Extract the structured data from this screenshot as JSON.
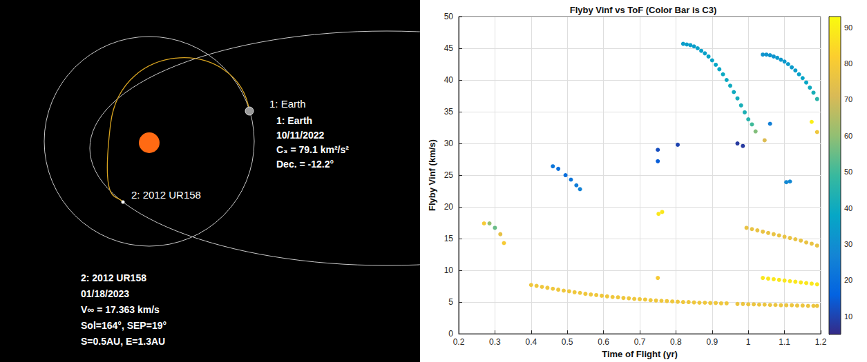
{
  "chart_data": {
    "type": "scatter",
    "title": "Flyby Vinf vs ToF (Color Bar is C3)",
    "x_label": "Time of Flight (yr)",
    "y_label": "Flyby Vinf (km/s)",
    "x": [
      0.27,
      0.285,
      0.3,
      0.315,
      0.325,
      0.4,
      0.415,
      0.43,
      0.445,
      0.46,
      0.475,
      0.49,
      0.505,
      0.52,
      0.535,
      0.55,
      0.565,
      0.58,
      0.595,
      0.61,
      0.625,
      0.64,
      0.655,
      0.67,
      0.685,
      0.7,
      0.715,
      0.73,
      0.745,
      0.76,
      0.775,
      0.79,
      0.805,
      0.82,
      0.835,
      0.85,
      0.865,
      0.88,
      0.895,
      0.91,
      0.925,
      0.94,
      0.97,
      0.985,
      1.0,
      1.015,
      1.03,
      1.045,
      1.06,
      1.075,
      1.09,
      1.105,
      1.12,
      1.135,
      1.15,
      1.165,
      1.18,
      1.19,
      1.04,
      1.055,
      1.07,
      1.085,
      1.1,
      1.115,
      1.13,
      1.145,
      1.16,
      1.175,
      1.19,
      0.995,
      1.01,
      1.025,
      1.04,
      1.055,
      1.07,
      1.085,
      1.1,
      1.115,
      1.13,
      1.145,
      1.16,
      1.175,
      1.19,
      0.75,
      0.752,
      0.762,
      0.46,
      0.475,
      0.495,
      0.51,
      0.525,
      0.535,
      0.75,
      0.75,
      0.805,
      0.97,
      0.985,
      1.06,
      1.105,
      1.115,
      0.82,
      0.83,
      0.84,
      0.85,
      0.86,
      0.87,
      0.88,
      0.89,
      0.9,
      0.91,
      0.92,
      0.93,
      0.94,
      0.95,
      0.96,
      0.97,
      0.98,
      0.99,
      1.0,
      1.01,
      1.02,
      1.045,
      1.04,
      1.05,
      1.06,
      1.07,
      1.08,
      1.09,
      1.1,
      1.11,
      1.12,
      1.13,
      1.14,
      1.15,
      1.16,
      1.17,
      1.18,
      1.19,
      1.175,
      1.19
    ],
    "values": [
      17.4,
      17.4,
      16.7,
      15.7,
      14.3,
      7.7,
      7.55,
      7.4,
      7.25,
      7.1,
      6.95,
      6.8,
      6.7,
      6.55,
      6.45,
      6.3,
      6.2,
      6.1,
      6.0,
      5.9,
      5.8,
      5.75,
      5.65,
      5.6,
      5.5,
      5.45,
      5.4,
      5.3,
      5.25,
      5.2,
      5.15,
      5.1,
      5.05,
      5.0,
      5.0,
      4.95,
      4.9,
      4.9,
      4.85,
      4.85,
      4.8,
      4.8,
      4.7,
      4.7,
      4.65,
      4.65,
      4.6,
      4.6,
      4.55,
      4.55,
      4.5,
      4.5,
      4.5,
      4.45,
      4.45,
      4.4,
      4.4,
      4.4,
      8.8,
      8.7,
      8.6,
      8.5,
      8.4,
      8.3,
      8.2,
      8.1,
      8.0,
      7.9,
      7.8,
      16.7,
      16.5,
      16.3,
      16.1,
      15.9,
      15.7,
      15.5,
      15.3,
      15.1,
      14.9,
      14.7,
      14.4,
      14.2,
      13.9,
      8.8,
      18.9,
      19.2,
      26.4,
      26.0,
      25.0,
      24.3,
      23.4,
      22.8,
      29.0,
      27.2,
      29.8,
      30.0,
      29.6,
      33.1,
      23.9,
      24.0,
      45.7,
      45.6,
      45.5,
      45.3,
      45.0,
      44.6,
      44.2,
      43.7,
      43.1,
      42.4,
      41.7,
      40.9,
      40.0,
      39.1,
      38.1,
      37.1,
      36.0,
      34.9,
      33.8,
      33.0,
      31.9,
      30.5,
      44.0,
      44.0,
      43.9,
      43.7,
      43.5,
      43.2,
      42.9,
      42.5,
      42.0,
      41.5,
      40.9,
      40.3,
      39.6,
      38.8,
      38.0,
      37.0,
      33.4,
      31.8
    ],
    "c3": [
      80,
      60,
      55,
      75,
      80,
      78,
      78,
      78,
      78,
      78,
      78,
      78,
      78,
      78,
      78,
      78,
      78,
      78,
      78,
      78,
      78,
      78,
      78,
      78,
      78,
      78,
      78,
      78,
      78,
      78,
      78,
      78,
      78,
      78,
      78,
      78,
      78,
      78,
      78,
      78,
      78,
      78,
      77,
      77,
      77,
      77,
      77,
      77,
      77,
      77,
      77,
      77,
      77,
      77,
      77,
      77,
      77,
      77,
      88,
      88,
      88,
      88,
      88,
      88,
      88,
      88,
      88,
      88,
      88,
      76,
      76,
      76,
      76,
      76,
      76,
      76,
      76,
      76,
      76,
      76,
      76,
      76,
      76,
      80,
      88,
      88,
      22,
      20,
      20,
      22,
      24,
      26,
      12,
      15,
      10,
      8,
      8,
      25,
      28,
      28,
      35,
      35,
      35,
      35,
      36,
      36,
      36,
      37,
      37,
      38,
      38,
      39,
      39,
      40,
      40,
      41,
      42,
      43,
      45,
      50,
      58,
      72,
      32,
      32,
      32,
      32,
      33,
      33,
      33,
      34,
      34,
      35,
      36,
      37,
      38,
      40,
      42,
      46,
      90,
      78
    ],
    "xlim": [
      0.2,
      1.2
    ],
    "xticks": [
      0.2,
      0.3,
      0.4,
      0.5,
      0.6,
      0.7,
      0.8,
      0.9,
      1,
      1.1,
      1.2
    ],
    "ylim": [
      0,
      50
    ],
    "yticks": [
      0,
      5,
      10,
      15,
      20,
      25,
      30,
      35,
      40,
      45,
      50
    ],
    "colorbar": {
      "range": [
        5,
        93
      ],
      "ticks": [
        10,
        20,
        30,
        40,
        50,
        60,
        70,
        80,
        90
      ]
    },
    "grid": true,
    "marker": "circle"
  },
  "diagram": {
    "bodies": [
      {
        "label": "1: Earth",
        "details": [
          "1: Earth",
          "10/11/2022",
          "C₃ = 79.1 km²/s²",
          "Dec. = -12.2°"
        ]
      },
      {
        "label": "2: 2012 UR158",
        "details": [
          "2: 2012 UR158",
          "01/18/2023",
          "V∞ = 17.363 km/s",
          "Sol=164°, SEP=19°",
          "S=0.5AU, E=1.3AU"
        ]
      }
    ]
  }
}
